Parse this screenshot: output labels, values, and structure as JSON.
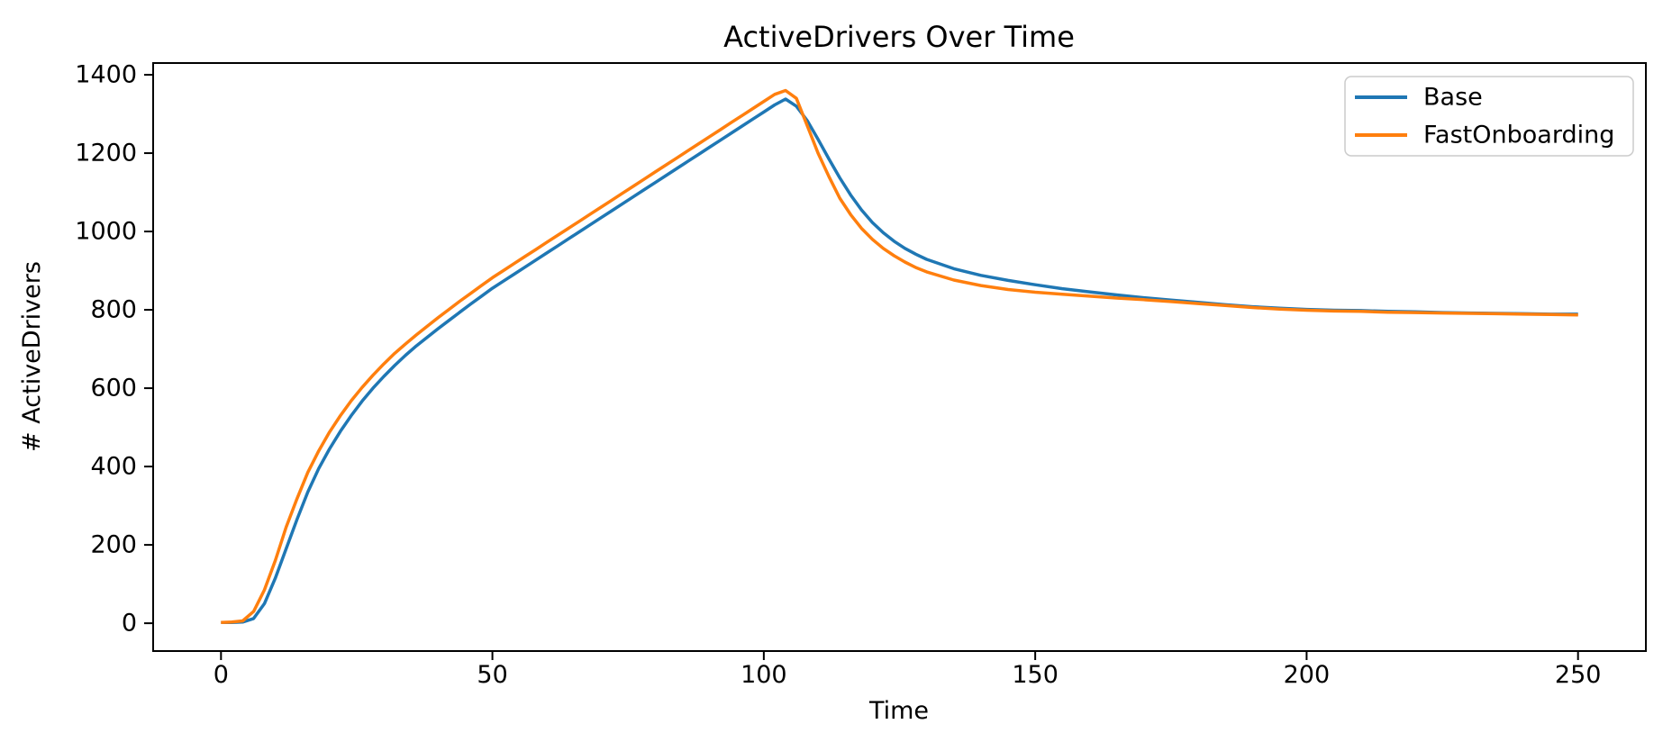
{
  "chart_data": {
    "type": "line",
    "title": "ActiveDrivers Over Time",
    "xlabel": "Time",
    "ylabel": "# ActiveDrivers",
    "grid": false,
    "legend_position": "upper right",
    "x_ticks": [
      0,
      50,
      100,
      150,
      200,
      250
    ],
    "y_ticks": [
      0,
      200,
      400,
      600,
      800,
      1000,
      1200,
      1400
    ],
    "xlim": [
      -12.5,
      262.5
    ],
    "ylim": [
      -71,
      1430
    ],
    "x": [
      0,
      2,
      4,
      6,
      8,
      10,
      12,
      14,
      16,
      18,
      20,
      22,
      24,
      26,
      28,
      30,
      32,
      34,
      36,
      38,
      40,
      42,
      44,
      46,
      48,
      50,
      52,
      54,
      56,
      58,
      60,
      62,
      64,
      66,
      68,
      70,
      72,
      74,
      76,
      78,
      80,
      82,
      84,
      86,
      88,
      90,
      92,
      94,
      96,
      98,
      100,
      102,
      104,
      106,
      108,
      110,
      112,
      114,
      116,
      118,
      120,
      122,
      124,
      126,
      128,
      130,
      135,
      140,
      145,
      150,
      155,
      160,
      165,
      170,
      175,
      180,
      185,
      190,
      195,
      200,
      205,
      210,
      215,
      220,
      225,
      230,
      235,
      240,
      245,
      250
    ],
    "series": [
      {
        "name": "Base",
        "color": "#1f77b4",
        "values": [
          2,
          2,
          3,
          12,
          50,
          115,
          190,
          265,
          335,
          395,
          445,
          490,
          530,
          567,
          600,
          630,
          658,
          684,
          708,
          730,
          752,
          773,
          794,
          815,
          835,
          855,
          873,
          891,
          909,
          927,
          945,
          963,
          981,
          999,
          1017,
          1035,
          1053,
          1071,
          1089,
          1107,
          1125,
          1143,
          1161,
          1179,
          1197,
          1215,
          1233,
          1251,
          1269,
          1287,
          1305,
          1323,
          1338,
          1320,
          1283,
          1235,
          1185,
          1137,
          1093,
          1055,
          1023,
          997,
          975,
          957,
          942,
          929,
          905,
          888,
          875,
          864,
          854,
          846,
          838,
          831,
          825,
          819,
          813,
          808,
          804,
          801,
          799,
          798,
          796,
          795,
          793,
          792,
          791,
          790,
          789,
          789
        ]
      },
      {
        "name": "FastOnboarding",
        "color": "#ff7f0e",
        "values": [
          2,
          3,
          6,
          30,
          85,
          160,
          245,
          318,
          385,
          440,
          488,
          530,
          568,
          602,
          633,
          662,
          689,
          713,
          736,
          758,
          780,
          801,
          822,
          842,
          862,
          882,
          900,
          918,
          936,
          954,
          972,
          990,
          1008,
          1026,
          1044,
          1062,
          1080,
          1098,
          1116,
          1134,
          1152,
          1170,
          1188,
          1206,
          1224,
          1242,
          1260,
          1278,
          1296,
          1314,
          1332,
          1350,
          1360,
          1340,
          1270,
          1200,
          1140,
          1085,
          1043,
          1008,
          980,
          957,
          938,
          922,
          908,
          897,
          876,
          862,
          852,
          845,
          840,
          835,
          830,
          826,
          821,
          816,
          811,
          806,
          802,
          799,
          797,
          796,
          794,
          793,
          792,
          791,
          790,
          789,
          788,
          787
        ]
      }
    ]
  }
}
